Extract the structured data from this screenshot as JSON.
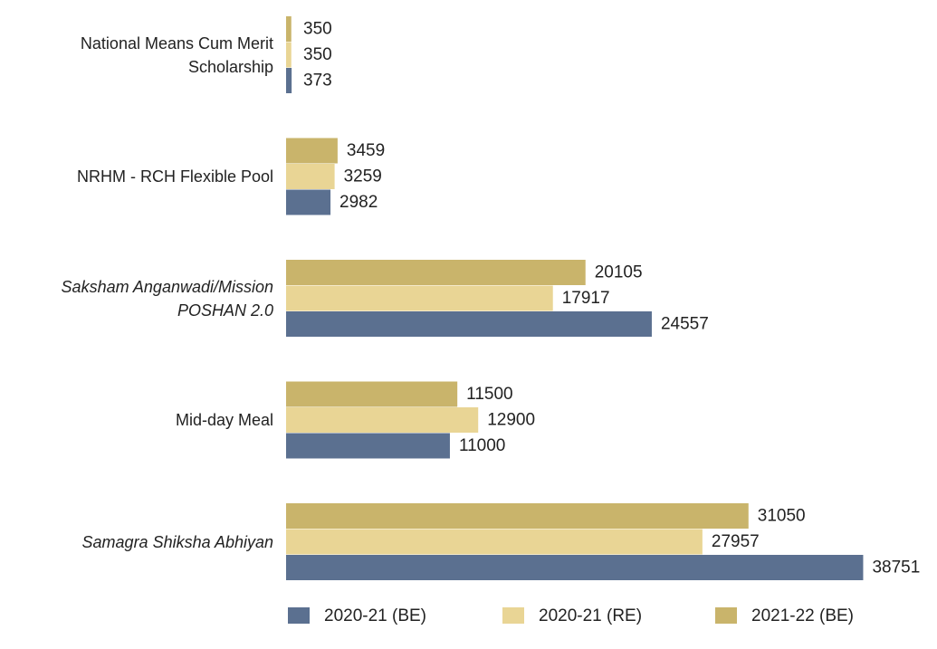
{
  "chart_data": {
    "type": "bar",
    "orientation": "horizontal",
    "categories": [
      "National Means Cum Merit Scholarship",
      "NRHM - RCH Flexible Pool",
      "Saksham Anganwadi/Mission POSHAN 2.0",
      "Mid-day Meal",
      "Samagra Shiksha Abhiyan"
    ],
    "series": [
      {
        "name": "2020-21 (BE)",
        "color": "#5b7090",
        "values": [
          373,
          2982,
          24557,
          11000,
          38751
        ]
      },
      {
        "name": "2020-21 (RE)",
        "color": "#e9d595",
        "values": [
          350,
          3259,
          17917,
          12900,
          27957
        ]
      },
      {
        "name": "2021-22 (BE)",
        "color": "#c9b46b",
        "values": [
          350,
          3459,
          20105,
          11500,
          31050
        ]
      }
    ],
    "legend": "bottom"
  }
}
